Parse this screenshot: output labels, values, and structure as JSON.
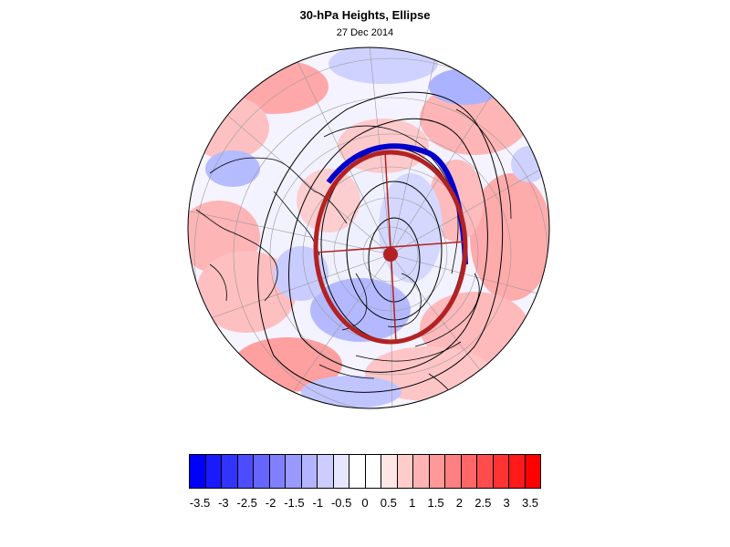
{
  "title": "30-hPa Heights, Ellipse",
  "subtitle": "27 Dec 2014",
  "colorbar": {
    "ticks": [
      "-3.5",
      "-3",
      "-2.5",
      "-2",
      "-1.5",
      "-1",
      "-0.5",
      "0",
      "0.5",
      "1",
      "1.5",
      "2",
      "2.5",
      "3",
      "3.5"
    ],
    "colors": [
      "#0000ff",
      "#1a1aff",
      "#3333ff",
      "#4d4dff",
      "#6666ff",
      "#8080ff",
      "#9999ff",
      "#b3b3ff",
      "#ccccff",
      "#e6e6ff",
      "#ffffff",
      "#ffffff",
      "#ffe6e6",
      "#ffcccc",
      "#ffb3b3",
      "#ff9999",
      "#ff8080",
      "#ff6666",
      "#ff4d4d",
      "#ff3333",
      "#ff1a1a",
      "#ff0000"
    ]
  },
  "map": {
    "projection": "polar-stereographic",
    "ellipse_color": "#b22222",
    "ellipse_edge_color": "#0000cc"
  }
}
